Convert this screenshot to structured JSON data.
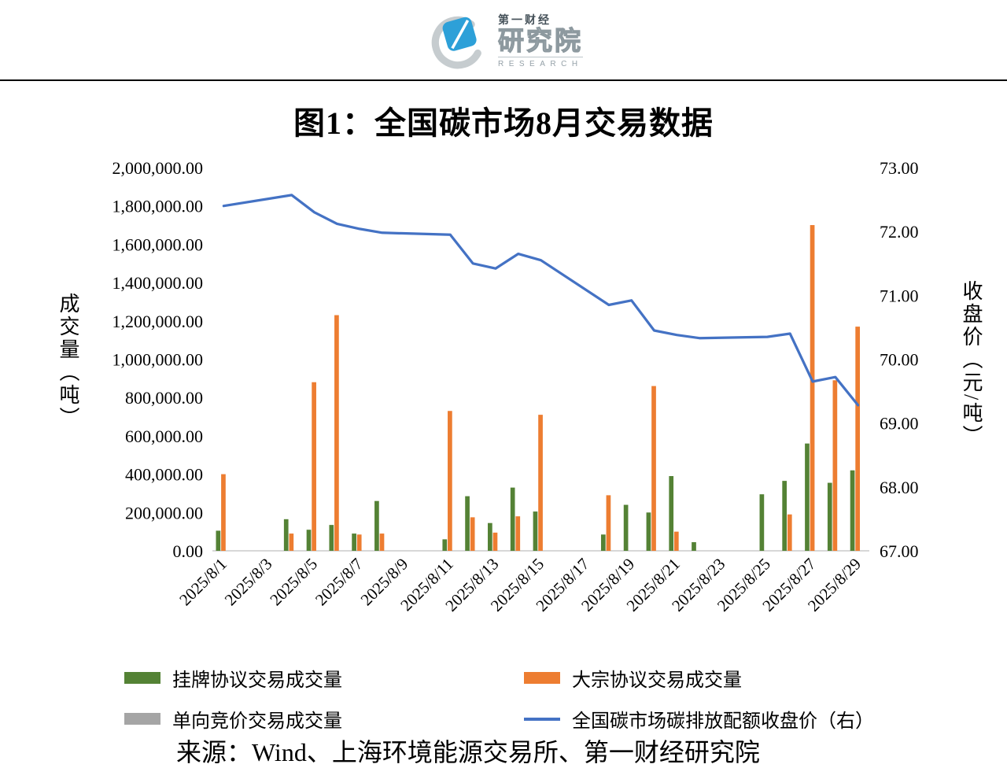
{
  "logo": {
    "brand_small": "第一财经",
    "brand_large": "研究院",
    "brand_en": "RESEARCH"
  },
  "title": "图1：全国碳市场8月交易数据",
  "source": "来源：Wind、上海环境能源交易所、第一财经研究院",
  "chart_data": {
    "type": "bar",
    "subtype": "grouped bars with secondary-axis line",
    "title": "图1：全国碳市场8月交易数据",
    "grid": false,
    "legend_position": "bottom",
    "days_span": 29,
    "left_axis": {
      "label": "成交量（吨）",
      "min": 0,
      "max": 2000000,
      "step": 200000
    },
    "right_axis": {
      "label": "收盘价（元/吨）",
      "min": 67,
      "max": 73,
      "step": 1
    },
    "x_tick_labels": [
      "2025/8/1",
      "2025/8/3",
      "2025/8/5",
      "2025/8/7",
      "2025/8/9",
      "2025/8/11",
      "2025/8/13",
      "2025/8/15",
      "2025/8/17",
      "2025/8/19",
      "2025/8/21",
      "2025/8/23",
      "2025/8/25",
      "2025/8/27",
      "2025/8/29"
    ],
    "series": [
      {
        "id": "listed-agreement-volume",
        "name": "挂牌协议交易成交量",
        "type": "bar",
        "color": "#548235",
        "points": [
          {
            "day": 1,
            "value": 105000
          },
          {
            "day": 4,
            "value": 165000
          },
          {
            "day": 5,
            "value": 110000
          },
          {
            "day": 6,
            "value": 135000
          },
          {
            "day": 7,
            "value": 90000
          },
          {
            "day": 8,
            "value": 260000
          },
          {
            "day": 11,
            "value": 60000
          },
          {
            "day": 12,
            "value": 285000
          },
          {
            "day": 13,
            "value": 145000
          },
          {
            "day": 14,
            "value": 330000
          },
          {
            "day": 15,
            "value": 205000
          },
          {
            "day": 18,
            "value": 85000
          },
          {
            "day": 19,
            "value": 240000
          },
          {
            "day": 20,
            "value": 200000
          },
          {
            "day": 21,
            "value": 390000
          },
          {
            "day": 22,
            "value": 45000
          },
          {
            "day": 25,
            "value": 295000
          },
          {
            "day": 26,
            "value": 365000
          },
          {
            "day": 27,
            "value": 560000
          },
          {
            "day": 28,
            "value": 355000
          },
          {
            "day": 29,
            "value": 420000
          }
        ]
      },
      {
        "id": "block-agreement-volume",
        "name": "大宗协议交易成交量",
        "type": "bar",
        "color": "#ED7D31",
        "points": [
          {
            "day": 1,
            "value": 400000
          },
          {
            "day": 4,
            "value": 90000
          },
          {
            "day": 5,
            "value": 880000
          },
          {
            "day": 6,
            "value": 1230000
          },
          {
            "day": 7,
            "value": 85000
          },
          {
            "day": 8,
            "value": 90000
          },
          {
            "day": 11,
            "value": 730000
          },
          {
            "day": 12,
            "value": 175000
          },
          {
            "day": 13,
            "value": 95000
          },
          {
            "day": 14,
            "value": 180000
          },
          {
            "day": 15,
            "value": 710000
          },
          {
            "day": 18,
            "value": 290000
          },
          {
            "day": 20,
            "value": 860000
          },
          {
            "day": 21,
            "value": 100000
          },
          {
            "day": 26,
            "value": 190000
          },
          {
            "day": 27,
            "value": 1700000
          },
          {
            "day": 28,
            "value": 890000
          },
          {
            "day": 29,
            "value": 1170000
          }
        ]
      },
      {
        "id": "one-way-auction-volume",
        "name": "单向竞价交易成交量",
        "type": "bar",
        "color": "#A5A5A5",
        "points": []
      },
      {
        "id": "carbon-allowance-closing-price",
        "name": "全国碳市场碳排放配额收盘价（右）",
        "type": "line",
        "axis": "right",
        "color": "#4472C4",
        "points": [
          {
            "day": 1,
            "value": 72.4
          },
          {
            "day": 4,
            "value": 72.57
          },
          {
            "day": 5,
            "value": 72.3
          },
          {
            "day": 6,
            "value": 72.12
          },
          {
            "day": 7,
            "value": 72.04
          },
          {
            "day": 8,
            "value": 71.98
          },
          {
            "day": 11,
            "value": 71.95
          },
          {
            "day": 12,
            "value": 71.5
          },
          {
            "day": 13,
            "value": 71.42
          },
          {
            "day": 14,
            "value": 71.65
          },
          {
            "day": 15,
            "value": 71.55
          },
          {
            "day": 18,
            "value": 70.85
          },
          {
            "day": 19,
            "value": 70.92
          },
          {
            "day": 20,
            "value": 70.45
          },
          {
            "day": 21,
            "value": 70.38
          },
          {
            "day": 22,
            "value": 70.33
          },
          {
            "day": 25,
            "value": 70.35
          },
          {
            "day": 26,
            "value": 70.4
          },
          {
            "day": 27,
            "value": 69.65
          },
          {
            "day": 28,
            "value": 69.72
          },
          {
            "day": 29,
            "value": 69.28
          }
        ]
      }
    ]
  }
}
